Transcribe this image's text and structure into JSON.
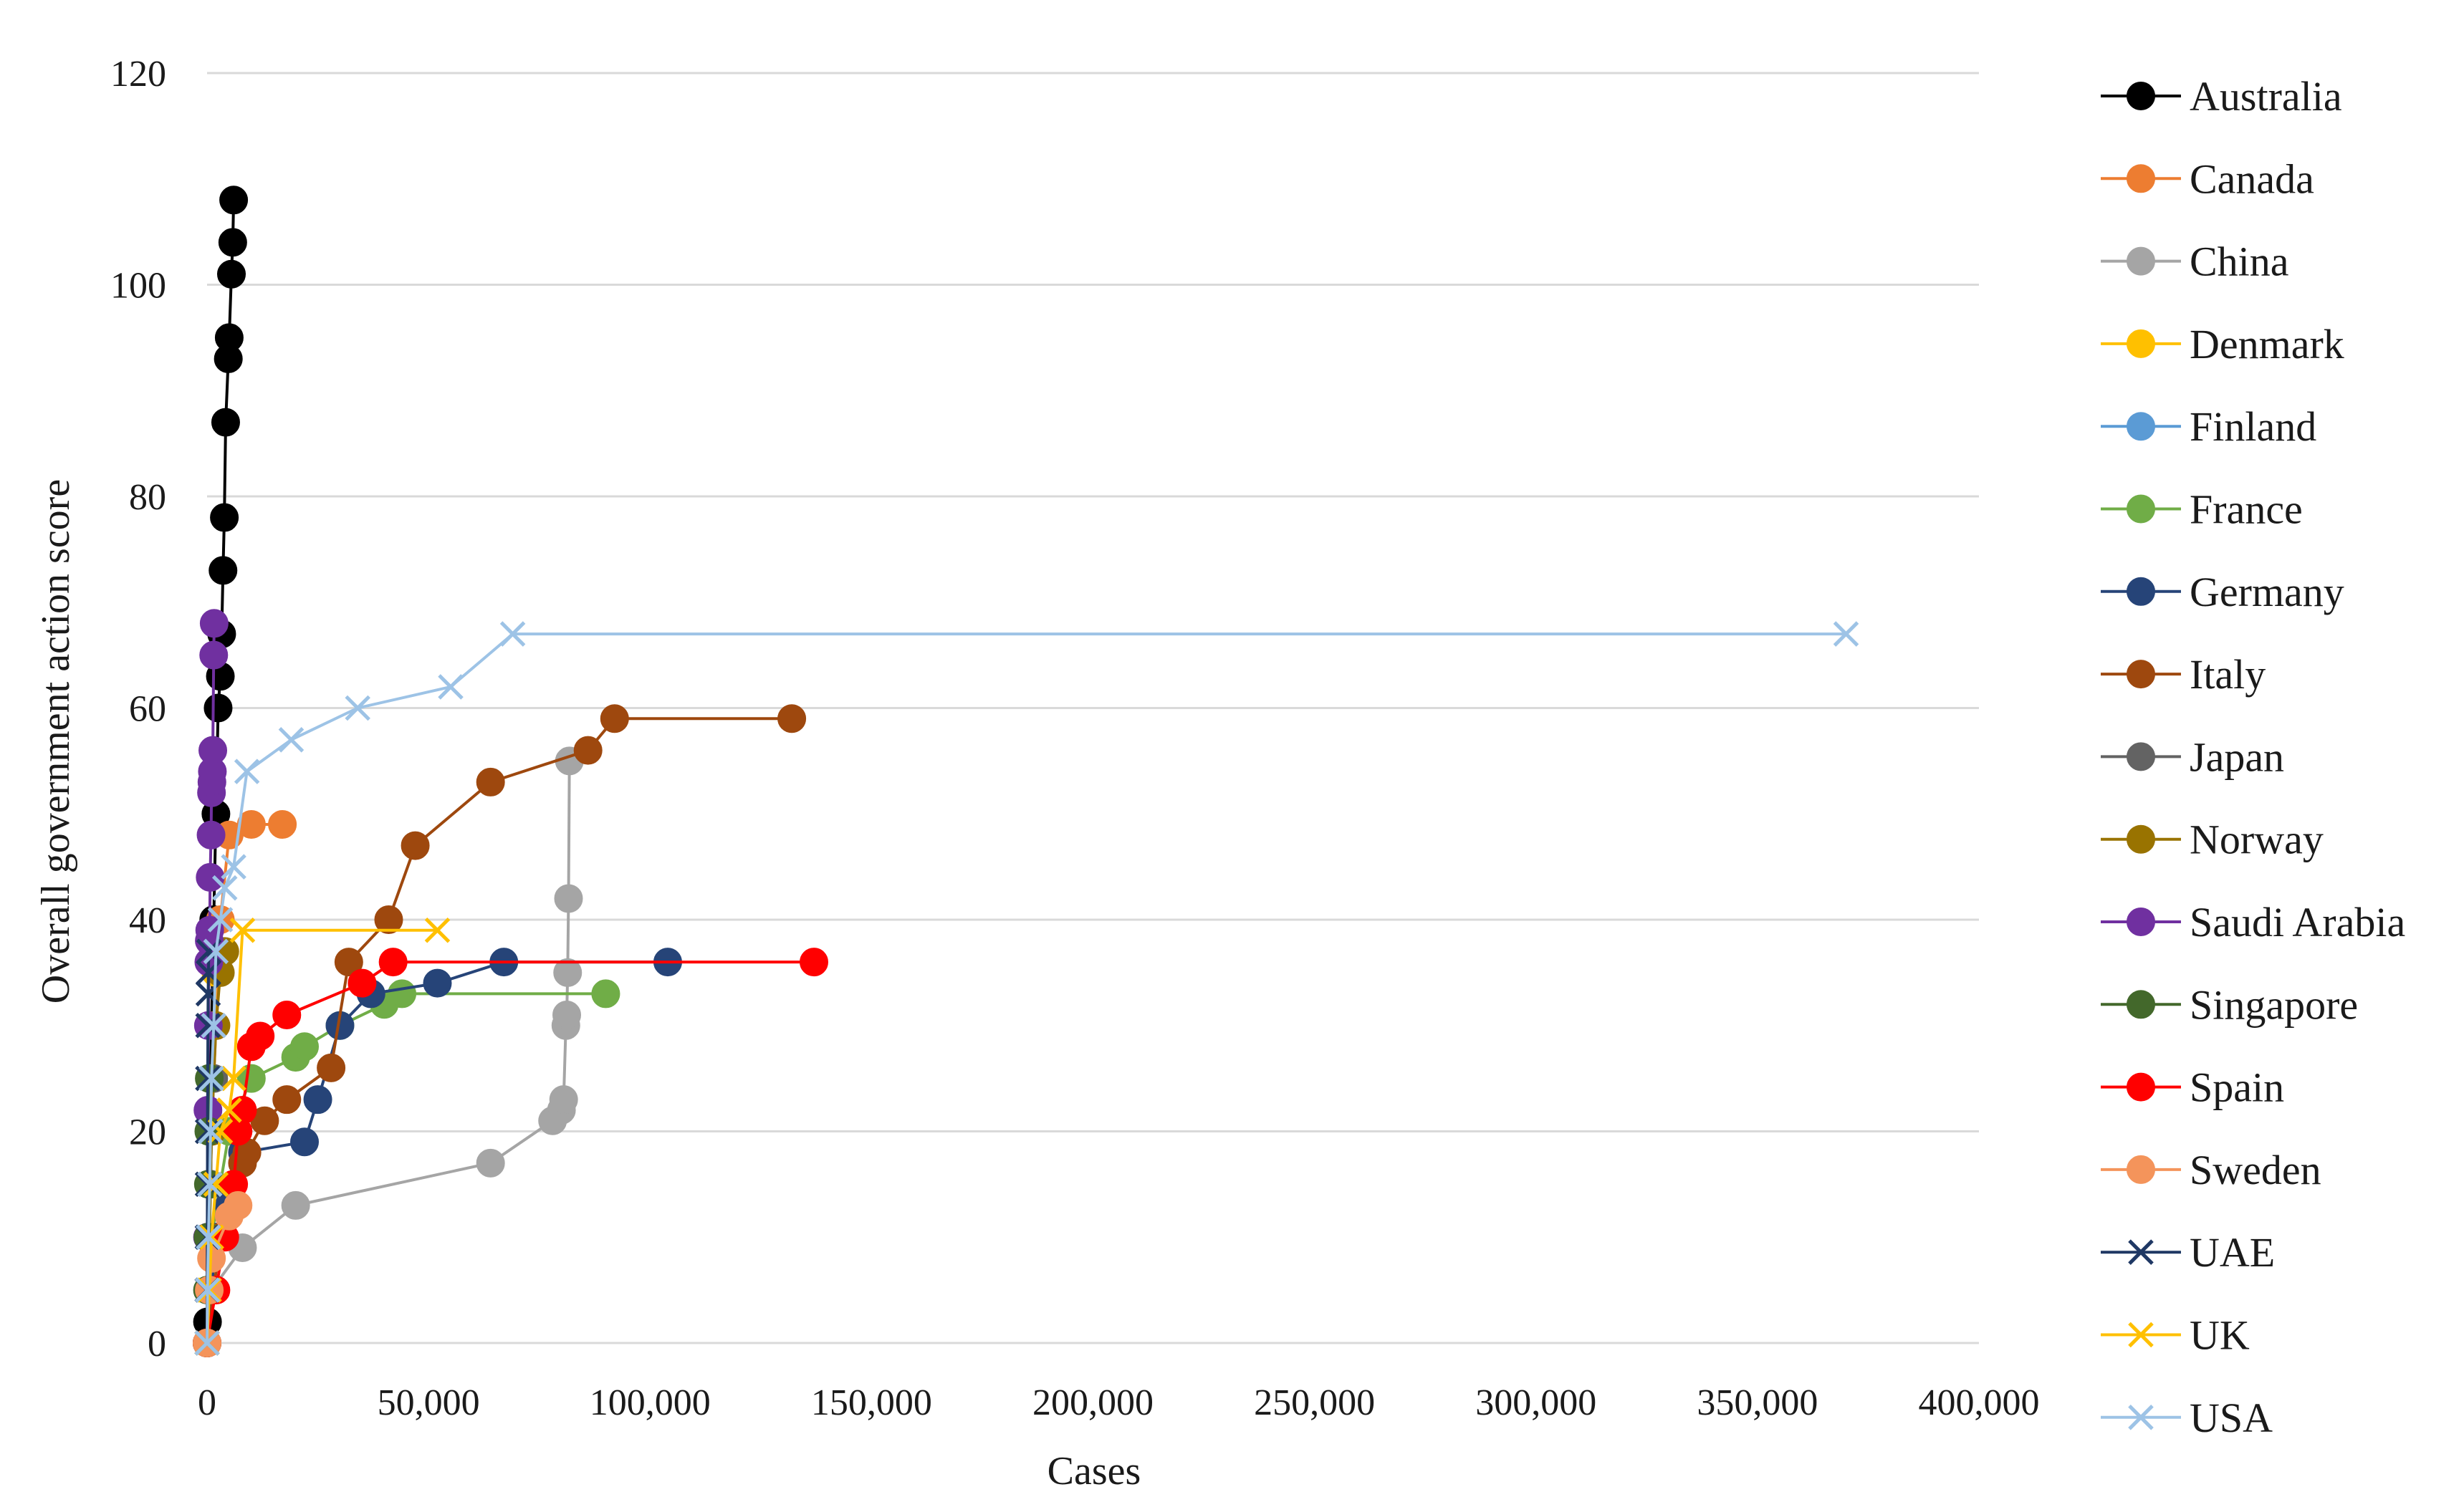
{
  "chart_data": {
    "type": "line",
    "xlabel": "Cases",
    "ylabel": "Overall government action score",
    "xlim": [
      0,
      400000
    ],
    "ylim": [
      0,
      120
    ],
    "x_ticks": [
      "0",
      "50,000",
      "100,000",
      "150,000",
      "200,000",
      "250,000",
      "300,000",
      "350,000",
      "400,000"
    ],
    "y_ticks": [
      "0",
      "20",
      "40",
      "60",
      "80",
      "100",
      "120"
    ],
    "grid": "horizontal",
    "legend_position": "right",
    "series": [
      {
        "name": "Australia",
        "color": "#000000",
        "marker": "circle",
        "points": [
          [
            0,
            0
          ],
          [
            100,
            2
          ],
          [
            300,
            10
          ],
          [
            600,
            20
          ],
          [
            1000,
            30
          ],
          [
            1500,
            40
          ],
          [
            2000,
            50
          ],
          [
            2500,
            60
          ],
          [
            3000,
            63
          ],
          [
            3300,
            67
          ],
          [
            3600,
            73
          ],
          [
            3900,
            78
          ],
          [
            4200,
            87
          ],
          [
            4800,
            93
          ],
          [
            5000,
            95
          ],
          [
            5500,
            101
          ],
          [
            5800,
            104
          ],
          [
            6000,
            108
          ]
        ]
      },
      {
        "name": "Canada",
        "color": "#ED7D31",
        "marker": "circle",
        "points": [
          [
            0,
            0
          ],
          [
            200,
            5
          ],
          [
            500,
            10
          ],
          [
            1000,
            20
          ],
          [
            2000,
            30
          ],
          [
            3000,
            40
          ],
          [
            5000,
            48
          ],
          [
            10000,
            49
          ],
          [
            17000,
            49
          ]
        ]
      },
      {
        "name": "China",
        "color": "#A5A5A5",
        "marker": "circle",
        "points": [
          [
            0,
            0
          ],
          [
            1000,
            5
          ],
          [
            8000,
            9
          ],
          [
            20000,
            13
          ],
          [
            64000,
            17
          ],
          [
            78000,
            21
          ],
          [
            80000,
            22
          ],
          [
            80500,
            23
          ],
          [
            81000,
            30
          ],
          [
            81200,
            31
          ],
          [
            81400,
            35
          ],
          [
            81600,
            42
          ],
          [
            81800,
            55
          ]
        ]
      },
      {
        "name": "Denmark",
        "color": "#FFC000",
        "marker": "circle",
        "points": [
          [
            0,
            0
          ],
          [
            500,
            10
          ],
          [
            1000,
            20
          ],
          [
            1500,
            30
          ],
          [
            2000,
            35
          ]
        ]
      },
      {
        "name": "Finland",
        "color": "#5B9BD5",
        "marker": "circle",
        "points": [
          [
            0,
            0
          ],
          [
            200,
            5
          ],
          [
            500,
            10
          ],
          [
            800,
            15
          ],
          [
            1000,
            20
          ]
        ]
      },
      {
        "name": "France",
        "color": "#70AD47",
        "marker": "circle",
        "points": [
          [
            0,
            0
          ],
          [
            1000,
            10
          ],
          [
            5000,
            20
          ],
          [
            10000,
            25
          ],
          [
            20000,
            27
          ],
          [
            22000,
            28
          ],
          [
            30000,
            30
          ],
          [
            40000,
            32
          ],
          [
            44000,
            33
          ],
          [
            90000,
            33
          ]
        ]
      },
      {
        "name": "Germany",
        "color": "#264478",
        "marker": "circle",
        "points": [
          [
            0,
            0
          ],
          [
            2000,
            10
          ],
          [
            5000,
            13
          ],
          [
            8000,
            18
          ],
          [
            22000,
            19
          ],
          [
            25000,
            23
          ],
          [
            30000,
            30
          ],
          [
            37000,
            33
          ],
          [
            52000,
            34
          ],
          [
            67000,
            36
          ],
          [
            104000,
            36
          ]
        ]
      },
      {
        "name": "Italy",
        "color": "#9E480E",
        "marker": "circle",
        "points": [
          [
            0,
            0
          ],
          [
            3000,
            10
          ],
          [
            8000,
            17
          ],
          [
            9000,
            18
          ],
          [
            13000,
            21
          ],
          [
            18000,
            23
          ],
          [
            28000,
            26
          ],
          [
            32000,
            36
          ],
          [
            41000,
            40
          ],
          [
            47000,
            47
          ],
          [
            64000,
            53
          ],
          [
            86000,
            56
          ],
          [
            92000,
            59
          ],
          [
            132000,
            59
          ]
        ]
      },
      {
        "name": "Japan",
        "color": "#636363",
        "marker": "circle",
        "points": [
          [
            0,
            0
          ],
          [
            200,
            5
          ],
          [
            500,
            10
          ],
          [
            800,
            15
          ],
          [
            1000,
            20
          ],
          [
            1500,
            25
          ]
        ]
      },
      {
        "name": "Norway",
        "color": "#997300",
        "marker": "circle",
        "points": [
          [
            0,
            0
          ],
          [
            500,
            10
          ],
          [
            1000,
            20
          ],
          [
            2000,
            30
          ],
          [
            3000,
            35
          ],
          [
            4000,
            37
          ]
        ]
      },
      {
        "name": "Saudi Arabia",
        "color": "#7030A0",
        "marker": "circle",
        "points": [
          [
            0,
            0
          ],
          [
            100,
            10
          ],
          [
            200,
            22
          ],
          [
            300,
            30
          ],
          [
            400,
            36
          ],
          [
            500,
            38
          ],
          [
            600,
            39
          ],
          [
            700,
            44
          ],
          [
            900,
            48
          ],
          [
            1000,
            52
          ],
          [
            1100,
            53
          ],
          [
            1200,
            54
          ],
          [
            1300,
            56
          ],
          [
            1500,
            65
          ],
          [
            1600,
            68
          ]
        ]
      },
      {
        "name": "Singapore",
        "color": "#43682B",
        "marker": "circle",
        "points": [
          [
            0,
            0
          ],
          [
            100,
            5
          ],
          [
            200,
            10
          ],
          [
            300,
            15
          ],
          [
            400,
            20
          ],
          [
            500,
            25
          ]
        ]
      },
      {
        "name": "Spain",
        "color": "#FF0000",
        "marker": "circle",
        "points": [
          [
            0,
            0
          ],
          [
            2000,
            5
          ],
          [
            4000,
            10
          ],
          [
            6000,
            15
          ],
          [
            7000,
            20
          ],
          [
            8000,
            22
          ],
          [
            10000,
            28
          ],
          [
            12000,
            29
          ],
          [
            18000,
            31
          ],
          [
            35000,
            34
          ],
          [
            42000,
            36
          ],
          [
            137000,
            36
          ]
        ]
      },
      {
        "name": "Sweden",
        "color": "#F4945B",
        "marker": "circle",
        "points": [
          [
            0,
            0
          ],
          [
            500,
            5
          ],
          [
            1000,
            8
          ],
          [
            5000,
            12
          ],
          [
            7000,
            13
          ]
        ]
      },
      {
        "name": "UAE",
        "color": "#1F3864",
        "marker": "x",
        "points": [
          [
            0,
            0
          ],
          [
            20,
            5
          ],
          [
            50,
            10
          ],
          [
            80,
            15
          ],
          [
            100,
            20
          ],
          [
            150,
            25
          ],
          [
            200,
            30
          ],
          [
            250,
            33
          ],
          [
            300,
            35
          ],
          [
            400,
            37
          ]
        ]
      },
      {
        "name": "UK",
        "color": "#FFC000",
        "marker": "x",
        "points": [
          [
            0,
            0
          ],
          [
            500,
            5
          ],
          [
            1000,
            10
          ],
          [
            2000,
            15
          ],
          [
            3000,
            20
          ],
          [
            5000,
            22
          ],
          [
            6000,
            25
          ],
          [
            8000,
            39
          ],
          [
            52000,
            39
          ]
        ]
      },
      {
        "name": "USA",
        "color": "#9DC3E6",
        "marker": "x",
        "points": [
          [
            0,
            0
          ],
          [
            100,
            5
          ],
          [
            300,
            10
          ],
          [
            600,
            15
          ],
          [
            800,
            20
          ],
          [
            1000,
            25
          ],
          [
            1500,
            30
          ],
          [
            2000,
            37
          ],
          [
            3000,
            40
          ],
          [
            4000,
            43
          ],
          [
            6000,
            45
          ],
          [
            9000,
            54
          ],
          [
            19000,
            57
          ],
          [
            34000,
            60
          ],
          [
            55000,
            62
          ],
          [
            69000,
            67
          ],
          [
            370000,
            67
          ]
        ]
      }
    ]
  }
}
